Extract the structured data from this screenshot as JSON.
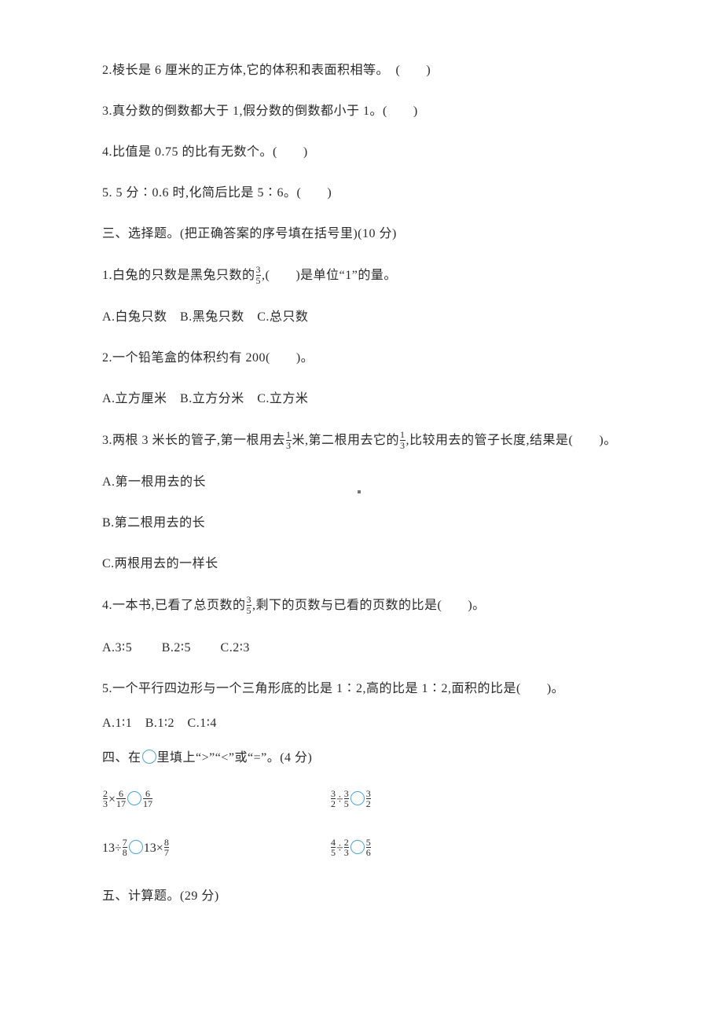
{
  "q2_2": "2.棱长是 6 厘米的正方体,它的体积和表面积相等。　(　　)",
  "q2_3": "3.真分数的倒数都大于 1,假分数的倒数都小于 1。(　　)",
  "q2_4": "4.比值是 0.75 的比有无数个。(　　)",
  "q2_5": "5. 5 分∶0.6 时,化简后比是 5∶6。(　　)",
  "s3_title": "三、选择题。(把正确答案的序号填在括号里)(10 分)",
  "s3_q1_a": "1.白兔的只数是黑兔只数的",
  "s3_q1_b": ",(　　)是单位“1”的量。",
  "s3_q1_opts": "A.白兔只数　B.黑兔只数　C.总只数",
  "s3_q2": "2.一个铅笔盒的体积约有 200(　　)。",
  "s3_q2_opts": "A.立方厘米　B.立方分米　C.立方米",
  "s3_q3_a": "3.两根 3 米长的管子,第一根用去",
  "s3_q3_b": "米,第二根用去它的",
  "s3_q3_c": ",比较用去的管子长度,结果是(　　)。",
  "s3_q3_optA": "A.第一根用去的长",
  "s3_q3_optB": "B.第二根用去的长",
  "s3_q3_optC": "C.两根用去的一样长",
  "s3_q4_a": "4.一本书,已看了总页数的",
  "s3_q4_b": ",剩下的页数与已看的页数的比是(　　)。",
  "s3_q4_opts": "A.3∶5　　 B.2∶5　　 C.2∶3",
  "s3_q5": "5.一个平行四边形与一个三角形底的比是 1∶2,高的比是 1∶2,面积的比是(　　)。",
  "s3_q5_opts": "A.1∶1　B.1∶2　C.1∶4",
  "s4_title_a": "四、在",
  "s4_title_b": "里填上“>”“<”或“=”。(4 分)",
  "s5_title": "五、计算题。(29 分)",
  "f": {
    "3_5": {
      "n": "3",
      "d": "5"
    },
    "1_3": {
      "n": "1",
      "d": "3"
    },
    "2_3": {
      "n": "2",
      "d": "3"
    },
    "6_17": {
      "n": "6",
      "d": "17"
    },
    "3_2": {
      "n": "3",
      "d": "2"
    },
    "3_5b": {
      "n": "3",
      "d": "5"
    },
    "7_8": {
      "n": "7",
      "d": "8"
    },
    "8_7": {
      "n": "8",
      "d": "7"
    },
    "4_5": {
      "n": "4",
      "d": "5"
    },
    "5_6": {
      "n": "5",
      "d": "6"
    }
  },
  "colors": {
    "text": "#2a2a2a",
    "circle": "#4aa3e0",
    "bg": "#ffffff"
  }
}
